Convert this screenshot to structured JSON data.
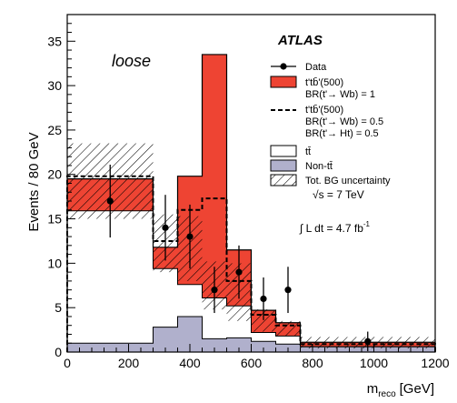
{
  "chart_data": {
    "type": "histogram",
    "title": "",
    "experiment_label": "ATLAS",
    "selection_label": "loose",
    "xlabel": "m",
    "xlabel_sub": "reco",
    "xlabel_unit": "[GeV]",
    "ylabel": "Events / 80 GeV",
    "xlim": [
      0,
      1200
    ],
    "ylim": [
      0,
      38
    ],
    "x_ticks": [
      0,
      200,
      400,
      600,
      800,
      1000,
      1200
    ],
    "y_ticks": [
      0,
      5,
      10,
      15,
      20,
      25,
      30,
      35
    ],
    "bin_edges": [
      0,
      280,
      360,
      440,
      520,
      600,
      680,
      760,
      1200
    ],
    "series": [
      {
        "name": "Non-tt̄",
        "values": [
          1.0,
          2.8,
          4.0,
          1.5,
          1.6,
          1.2,
          0.9,
          0.6
        ],
        "color": "#b0b0cc"
      },
      {
        "name": "tt̄",
        "values": [
          15.9,
          9.4,
          7.6,
          6.1,
          5.2,
          2.2,
          1.8,
          0.6
        ],
        "color": "#ffffff"
      },
      {
        "name": "t'tb̄'(500) BR(t'→ Wb) = 1",
        "values": [
          19.5,
          11.8,
          19.8,
          33.5,
          11.5,
          4.7,
          3.3,
          1.1
        ],
        "color": "#ee4433"
      },
      {
        "name": "t'tb̄'(500) BR(t'→ Wb) = 0.5 BR(t'→ Ht) = 0.5",
        "values": [
          19.8,
          12.5,
          16.0,
          17.3,
          8.0,
          4.2,
          3.0,
          0.9
        ]
      },
      {
        "name": "Tot. BG uncertainty",
        "low": [
          15.0,
          9.0,
          8.0,
          4.8,
          3.5,
          2.3,
          1.8,
          0.4
        ],
        "high": [
          23.5,
          15.5,
          15.3,
          10.2,
          10.0,
          4.8,
          3.5,
          1.7
        ]
      }
    ],
    "data": {
      "name": "Data",
      "x": [
        140,
        320,
        400,
        480,
        560,
        640,
        720,
        980
      ],
      "y": [
        17,
        14,
        13,
        7,
        9,
        6,
        7,
        1.2
      ],
      "yerr": [
        4.1,
        3.7,
        3.6,
        2.6,
        3.0,
        2.4,
        2.6,
        1.1
      ]
    },
    "legend_placement": "top-right",
    "legend": [
      {
        "key": "data",
        "lines": [
          "Data"
        ]
      },
      {
        "key": "tprime_wb1",
        "lines": [
          "t'tb̄'(500)",
          "BR(t'→ Wb) = 1"
        ]
      },
      {
        "key": "tprime_mix",
        "lines": [
          "t'tb̄'(500)",
          "BR(t'→ Wb) = 0.5",
          "BR(t'→ Ht) = 0.5"
        ]
      },
      {
        "key": "ttbar",
        "lines": [
          "tt̄"
        ]
      },
      {
        "key": "nontt",
        "lines": [
          "Non-tt̄"
        ]
      },
      {
        "key": "unc",
        "lines": [
          "Tot. BG uncertainty"
        ]
      }
    ],
    "annotations": {
      "sqrt_s": "√s = 7 TeV",
      "lumi_prefix": "∫ L dt = 4.7 fb",
      "lumi_exp": "-1"
    },
    "grid": false
  }
}
